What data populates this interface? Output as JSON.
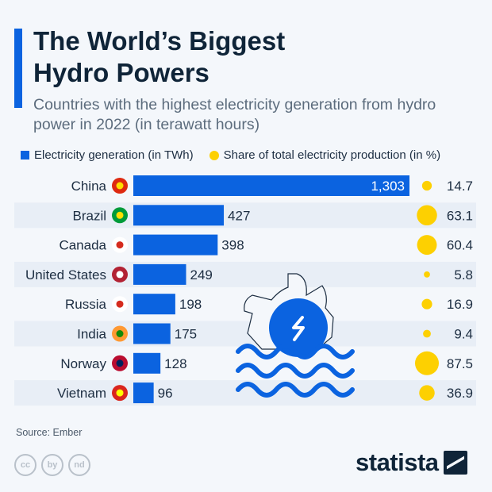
{
  "title": "The World’s Biggest Hydro Powers",
  "subtitle": "Countries with the highest electricity generation from hydro power in 2022 (in terawatt hours)",
  "source": "Source: Ember",
  "logo": "statista",
  "license_icons": [
    "cc",
    "by",
    "nd"
  ],
  "colors": {
    "bar": "#0b63e0",
    "bubble": "#fdd001"
  },
  "chart_data": {
    "type": "bar",
    "orientation": "horizontal",
    "title": "The World’s Biggest Hydro Powers",
    "legend": [
      "Electricity generation (in TWh)",
      "Share of total electricity production (in %)"
    ],
    "legend_position": "top-left",
    "categories": [
      "China",
      "Brazil",
      "Canada",
      "United States",
      "Russia",
      "India",
      "Norway",
      "Vietnam"
    ],
    "series": [
      {
        "name": "Electricity generation (in TWh)",
        "values": [
          1303,
          427,
          398,
          249,
          198,
          175,
          128,
          96
        ],
        "labels": [
          "1,303",
          "427",
          "398",
          "249",
          "198",
          "175",
          "128",
          "96"
        ]
      },
      {
        "name": "Share of total electricity production (in %)",
        "values": [
          14.7,
          63.1,
          60.4,
          5.8,
          16.9,
          9.4,
          87.5,
          36.9
        ],
        "labels": [
          "14.7",
          "63.1",
          "60.4",
          "5.8",
          "16.9",
          "9.4",
          "87.5",
          "36.9"
        ]
      }
    ],
    "flags": [
      "cn-flag-icon",
      "br-flag-icon",
      "ca-flag-icon",
      "us-flag-icon",
      "ru-flag-icon",
      "in-flag-icon",
      "no-flag-icon",
      "vn-flag-icon"
    ]
  }
}
